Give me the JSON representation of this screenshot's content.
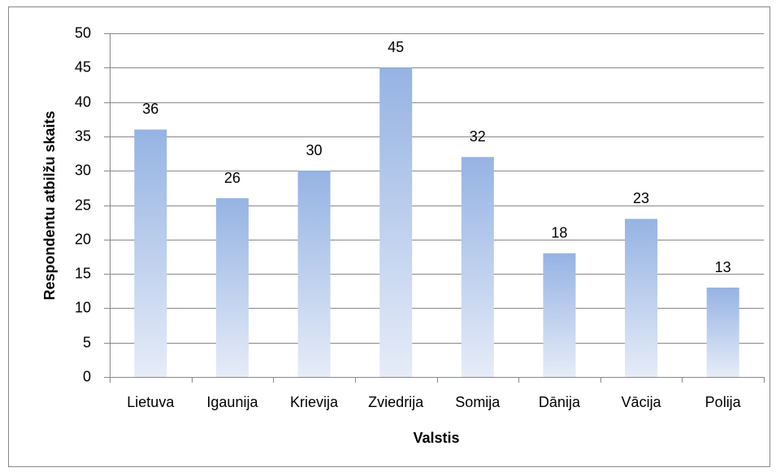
{
  "chart_data": {
    "type": "bar",
    "x_label": "Valstis",
    "y_label": "Respondentu atbilžu skaits",
    "categories": [
      "Lietuva",
      "Igaunija",
      "Krievija",
      "Zviedrija",
      "Somija",
      "Dānija",
      "Vācija",
      "Polija"
    ],
    "values": [
      36,
      26,
      30,
      45,
      32,
      18,
      23,
      13
    ],
    "color": "#95b3e3",
    "ylim": [
      0,
      50
    ],
    "yticks": [
      0,
      5,
      10,
      15,
      20,
      25,
      30,
      35,
      40,
      45,
      50
    ],
    "grid": true
  }
}
